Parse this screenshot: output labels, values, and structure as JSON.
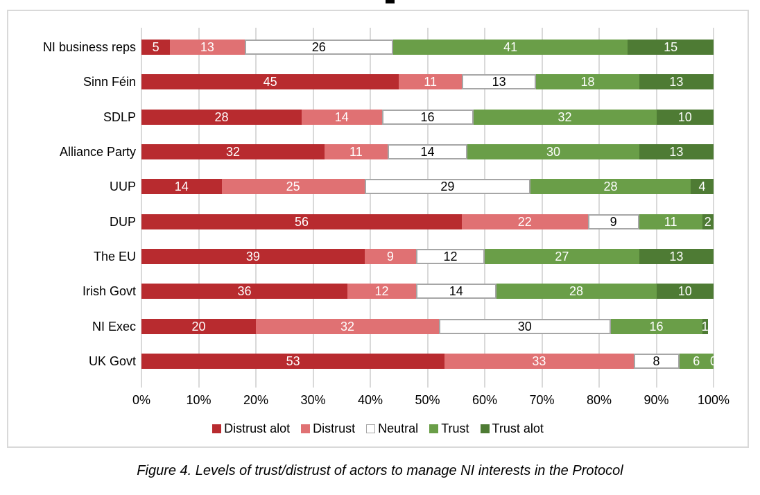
{
  "figure": {
    "caption": "Figure 4. Levels of trust/distrust of actors to manage NI interests in the Protocol"
  },
  "chart_data": {
    "type": "bar",
    "orientation": "horizontal",
    "stacked": true,
    "grid": true,
    "legend_position": "bottom",
    "categories": [
      "NI business reps",
      "Sinn Féin",
      "SDLP",
      "Alliance Party",
      "UUP",
      "DUP",
      "The EU",
      "Irish Govt",
      "NI Exec",
      "UK Govt"
    ],
    "series": [
      {
        "name": "Distrust alot",
        "color": "#B82B2F",
        "text_color": "#FFFFFF",
        "values": [
          5,
          45,
          28,
          32,
          14,
          56,
          39,
          36,
          20,
          53
        ]
      },
      {
        "name": "Distrust",
        "color": "#E07173",
        "text_color": "#FFFFFF",
        "values": [
          13,
          11,
          14,
          11,
          25,
          22,
          9,
          12,
          32,
          33
        ]
      },
      {
        "name": "Neutral",
        "color": "#FFFFFF",
        "border_color": "#A6A6A6",
        "text_color": "#000000",
        "values": [
          26,
          13,
          16,
          14,
          29,
          9,
          12,
          14,
          30,
          8
        ]
      },
      {
        "name": "Trust",
        "color": "#6A9E48",
        "text_color": "#FFFFFF",
        "values": [
          41,
          18,
          32,
          30,
          28,
          11,
          27,
          28,
          16,
          6
        ]
      },
      {
        "name": "Trust alot",
        "color": "#4E7B34",
        "text_color": "#FFFFFF",
        "values": [
          15,
          13,
          10,
          13,
          4,
          2,
          13,
          10,
          1,
          0
        ]
      }
    ],
    "x_axis": {
      "min": 0,
      "max": 100,
      "ticks": [
        "0%",
        "10%",
        "20%",
        "30%",
        "40%",
        "50%",
        "60%",
        "70%",
        "80%",
        "90%",
        "100%"
      ]
    },
    "legend": [
      "Distrust alot",
      "Distrust",
      "Neutral",
      "Trust",
      "Trust alot"
    ],
    "colors": {
      "gridline": "#D9D9D9",
      "plot_border": "#D9D9D9",
      "neutral_border": "#A6A6A6"
    }
  }
}
